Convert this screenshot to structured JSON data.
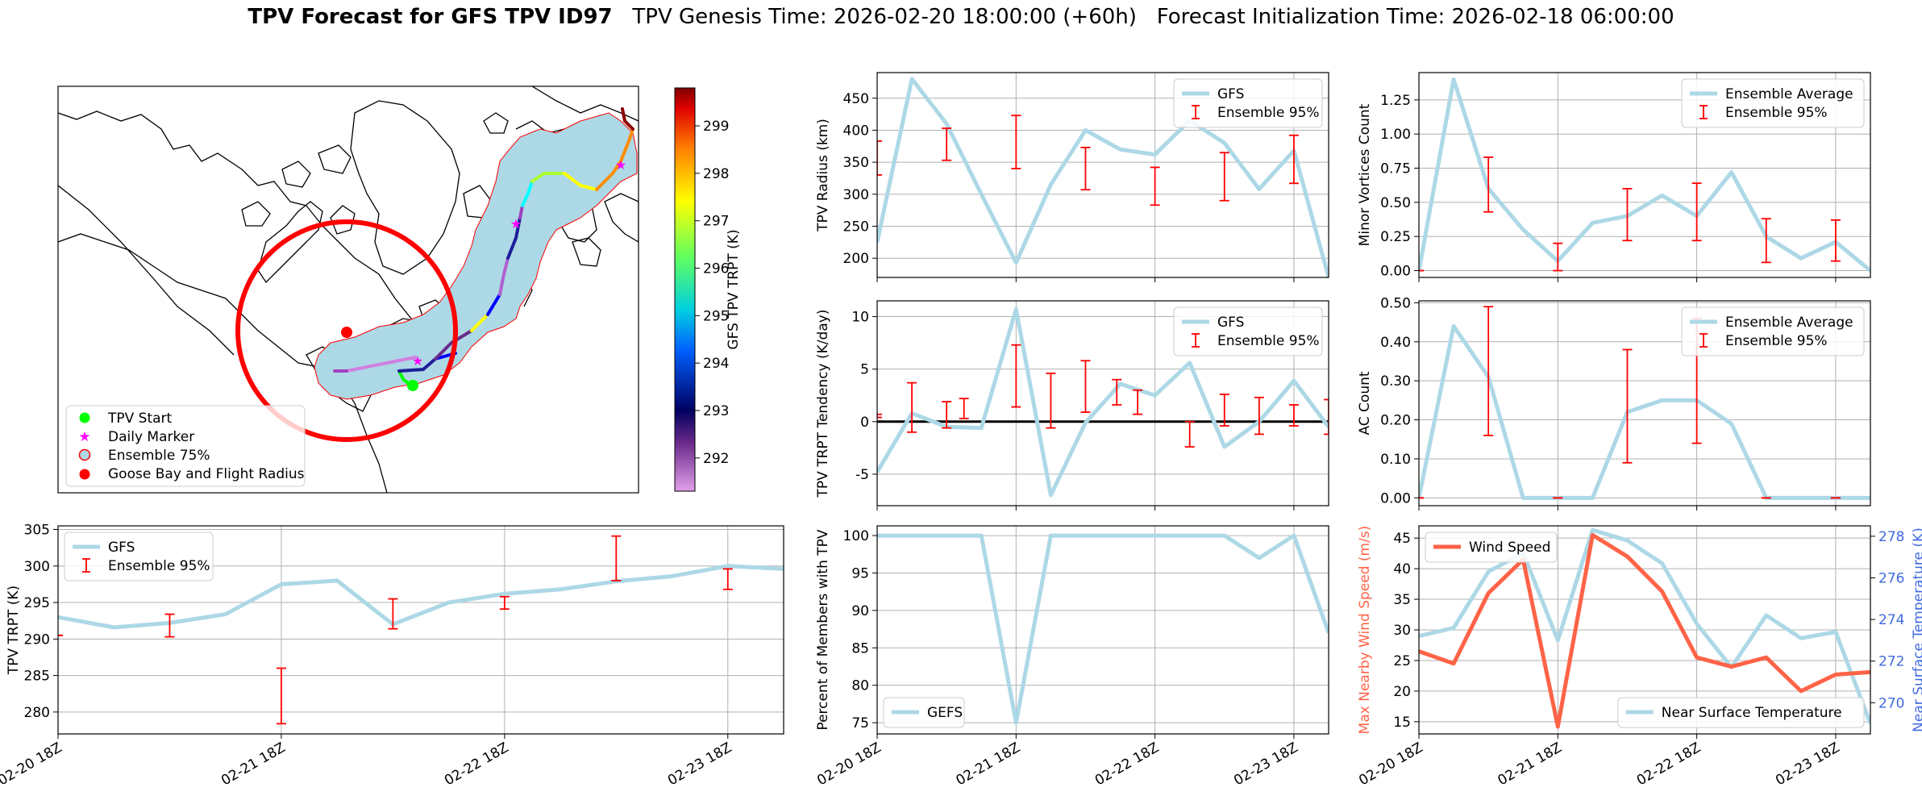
{
  "title": {
    "bold": "TPV Forecast for GFS TPV ID97",
    "genesis": "TPV Genesis Time: 2026-02-20 18:00:00 (+60h)",
    "init": "Forecast Initialization Time: 2026-02-18 06:00:00"
  },
  "colors": {
    "gfs": "#add8e6",
    "err": "#ff0000",
    "wind": "#ff6347",
    "temp_axis": "#4169e1",
    "circle": "#ff0000",
    "envelope": "#add8e6"
  },
  "map": {
    "legend": [
      "TPV Start",
      "Daily Marker",
      "Ensemble 75%",
      "Goose Bay and Flight Radius"
    ],
    "colorbar": {
      "label": "GFS TPV TRPT (K)",
      "ticks": [
        292,
        293,
        294,
        295,
        296,
        297,
        298,
        299
      ],
      "range": [
        291.3,
        299.8
      ]
    }
  },
  "time_ticks": [
    "02-20 18Z",
    "02-21 18Z",
    "02-22 18Z",
    "02-23 18Z"
  ],
  "chart_data": [
    {
      "id": "radius",
      "type": "line",
      "ylabel": "TPV Radius (km)",
      "ylim": [
        170,
        490
      ],
      "yticks": [
        200,
        250,
        300,
        350,
        400,
        450
      ],
      "xlim": [
        0,
        13
      ],
      "series": [
        {
          "name": "GFS",
          "x": [
            0,
            1,
            2,
            3,
            4,
            5,
            6,
            7,
            8,
            9,
            10,
            11,
            12,
            13
          ],
          "values": [
            225,
            480,
            410,
            300,
            193,
            315,
            400,
            370,
            362,
            415,
            380,
            308,
            368,
            170
          ]
        }
      ],
      "errors": {
        "name": "Ensemble 95%",
        "x": [
          0,
          2,
          4,
          6,
          8,
          10,
          12
        ],
        "low": [
          330,
          353,
          340,
          307,
          283,
          290,
          317
        ],
        "high": [
          383,
          403,
          423,
          373,
          342,
          365,
          392
        ]
      }
    },
    {
      "id": "minor",
      "type": "line",
      "ylabel": "Minor Vortices Count",
      "ylim": [
        -0.05,
        1.45
      ],
      "yticks": [
        0.0,
        0.25,
        0.5,
        0.75,
        1.0,
        1.25
      ],
      "xlim": [
        0,
        13
      ],
      "series": [
        {
          "name": "Ensemble Average",
          "x": [
            0,
            1,
            2,
            3,
            4,
            5,
            6,
            7,
            8,
            9,
            10,
            11,
            12,
            13
          ],
          "values": [
            0.0,
            1.4,
            0.6,
            0.3,
            0.07,
            0.35,
            0.4,
            0.55,
            0.4,
            0.72,
            0.25,
            0.09,
            0.21,
            0.0
          ]
        }
      ],
      "errors": {
        "name": "Ensemble 95%",
        "x": [
          0,
          2,
          4,
          6,
          8,
          10,
          12
        ],
        "low": [
          0.0,
          0.43,
          0.0,
          0.22,
          0.22,
          0.06,
          0.07
        ],
        "high": [
          0.0,
          0.83,
          0.2,
          0.6,
          0.64,
          0.38,
          0.37
        ]
      }
    },
    {
      "id": "trend",
      "type": "line",
      "ylabel": "TPV TRPT Tendency (K/day)",
      "ylim": [
        -8,
        11.5
      ],
      "yticks": [
        -5,
        0,
        5,
        10
      ],
      "xlim": [
        0,
        13
      ],
      "hline": 0,
      "series": [
        {
          "name": "GFS",
          "x": [
            0,
            1,
            2,
            3,
            4,
            5,
            6,
            7,
            8,
            9,
            10,
            11,
            12,
            13
          ],
          "values": [
            -4.8,
            0.8,
            -0.5,
            -0.6,
            10.7,
            -7.0,
            -0.1,
            3.6,
            2.5,
            5.6,
            -2.4,
            0.0,
            3.9,
            -0.5
          ]
        }
      ],
      "errors": {
        "name": "Ensemble 95%",
        "x": [
          0,
          1,
          2,
          2.5,
          4,
          5,
          6,
          6.9,
          7.5,
          9,
          10,
          11,
          12,
          13
        ],
        "low": [
          0.4,
          -1.0,
          -0.6,
          0.3,
          1.4,
          -0.6,
          0.9,
          1.6,
          0.7,
          -2.4,
          -0.4,
          -1.2,
          -0.4,
          -1.2
        ],
        "high": [
          0.7,
          3.7,
          1.9,
          2.2,
          7.3,
          4.6,
          5.8,
          4.0,
          3.0,
          0.0,
          2.6,
          2.3,
          1.6,
          2.1
        ]
      }
    },
    {
      "id": "ac",
      "type": "line",
      "ylabel": "AC Count",
      "ylim": [
        -0.02,
        0.505
      ],
      "yticks": [
        0.0,
        0.1,
        0.2,
        0.3,
        0.4,
        0.5
      ],
      "xlim": [
        0,
        13
      ],
      "series": [
        {
          "name": "Ensemble Average",
          "x": [
            0,
            1,
            2,
            3,
            4,
            5,
            6,
            7,
            8,
            9,
            10,
            11,
            12,
            13
          ],
          "values": [
            0.0,
            0.44,
            0.31,
            0.0,
            0.0,
            0.0,
            0.22,
            0.25,
            0.25,
            0.19,
            0.0,
            0.0,
            0.0,
            0.0
          ]
        }
      ],
      "errors": {
        "name": "Ensemble 95%",
        "x": [
          0,
          2,
          4,
          6,
          8,
          10,
          12
        ],
        "low": [
          0.0,
          0.16,
          0.0,
          0.09,
          0.14,
          0.0,
          0.0
        ],
        "high": [
          0.0,
          0.49,
          0.0,
          0.38,
          0.46,
          0.0,
          0.0
        ]
      }
    },
    {
      "id": "trpt",
      "type": "line",
      "ylabel": "TPV TRPT (K)",
      "ylim": [
        277,
        305.5
      ],
      "yticks": [
        280,
        285,
        290,
        295,
        300,
        305
      ],
      "xlim": [
        0,
        13
      ],
      "series": [
        {
          "name": "GFS",
          "x": [
            0,
            1,
            2,
            3,
            4,
            5,
            6,
            7,
            8,
            9,
            10,
            11,
            12,
            13
          ],
          "values": [
            293.0,
            291.6,
            292.2,
            293.4,
            297.5,
            298.0,
            292.0,
            295.0,
            296.2,
            296.8,
            297.9,
            298.6,
            300.0,
            299.6
          ]
        }
      ],
      "errors": {
        "name": "Ensemble 95%",
        "x": [
          0,
          2,
          4,
          6,
          8,
          10,
          12
        ],
        "low": [
          290.5,
          290.3,
          278.4,
          291.4,
          294.1,
          298.0,
          296.8
        ],
        "high": [
          290.5,
          293.4,
          286.0,
          295.5,
          295.8,
          304.1,
          299.6
        ]
      }
    },
    {
      "id": "members",
      "type": "line",
      "ylabel": "Percent of Members with TPV",
      "ylim": [
        73.5,
        101.3
      ],
      "yticks": [
        75,
        80,
        85,
        90,
        95,
        100
      ],
      "xlim": [
        0,
        13
      ],
      "series": [
        {
          "name": "GEFS",
          "x": [
            0,
            1,
            2,
            3,
            4,
            5,
            6,
            7,
            8,
            9,
            10,
            11,
            12,
            13
          ],
          "values": [
            100,
            100,
            100,
            100,
            75,
            100,
            100,
            100,
            100,
            100,
            100,
            97,
            100,
            87
          ]
        }
      ]
    },
    {
      "id": "wind",
      "type": "line",
      "ylabel": "Max Nearby Wind Speed (m/s)",
      "ylim": [
        13,
        47
      ],
      "yticks": [
        15,
        20,
        25,
        30,
        35,
        40,
        45
      ],
      "xlim": [
        0,
        13
      ],
      "series": [
        {
          "name": "Wind Speed",
          "x": [
            0,
            1,
            2,
            3,
            4,
            5,
            6,
            7,
            8,
            9,
            10,
            11,
            12,
            13
          ],
          "values": [
            26.5,
            24.5,
            36.0,
            41.5,
            14.2,
            45.5,
            42.0,
            36.3,
            25.5,
            24.0,
            25.5,
            20.0,
            22.7,
            23.1
          ]
        }
      ],
      "ylabel2": "Near Surface Temperature (K)",
      "ylim2": [
        268.5,
        278.5
      ],
      "yticks2": [
        270,
        272,
        274,
        276,
        278
      ],
      "series2": [
        {
          "name": "Near Surface Temperature",
          "x": [
            0,
            1,
            2,
            3,
            4,
            5,
            6,
            7,
            8,
            9,
            10,
            11,
            12,
            13
          ],
          "values": [
            273.2,
            273.6,
            276.3,
            277.2,
            273.0,
            278.3,
            277.8,
            276.7,
            273.8,
            271.7,
            274.2,
            273.1,
            273.4,
            269.0
          ]
        }
      ]
    }
  ]
}
